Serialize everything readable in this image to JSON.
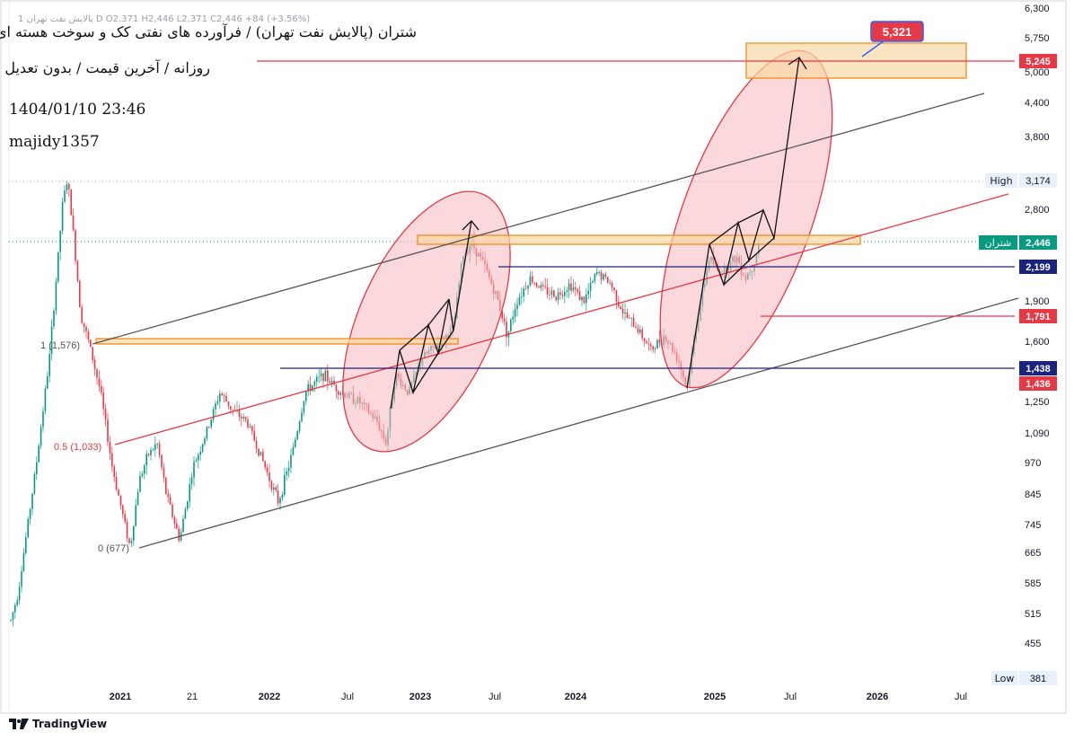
{
  "header": {
    "title": "شتران (پالایش نفت تهران) / فرآورده های نفتی کک و سوخت هسته ای",
    "subtitle": "روزانه / آخرین قیمت / بدون تعدیل",
    "datetime": "1404/01/10 23:46",
    "author": "majidy1357",
    "ohlc": "1 پالایش نفت تهران D  O2,371  H2,446  L2,371  C2,446  +84 (+3.56%)"
  },
  "footer": {
    "brand": "TradingView",
    "logo_icon": "tradingview-logo-icon"
  },
  "colors": {
    "candle_up": "#089981",
    "candle_down": "#f23645",
    "channel": "#555555",
    "midline": "#e53945",
    "zone_fill": "#f9d9a5",
    "zone_stroke": "#f08c1e",
    "ellipse_fill": "#f7b8be",
    "ellipse_stroke": "#e53945",
    "support_blue": "#1a237e"
  },
  "chart_data": {
    "type": "candlestick",
    "yscale": "log",
    "ylim": [
      381,
      6300
    ],
    "y_ticks": [
      "455",
      "515",
      "585",
      "665",
      "745",
      "845",
      "970",
      "1,090",
      "1,250",
      "1,600",
      "1,900",
      "2,800",
      "3,800",
      "4,400",
      "5,000",
      "5,750",
      "6,300"
    ],
    "x_ticks": [
      "2021",
      "21",
      "2022",
      "Jul",
      "2023",
      "Jul",
      "2024",
      "2025",
      "Jul",
      "2026",
      "Jul"
    ],
    "price_labels": [
      {
        "text": "5,321",
        "value": 5321,
        "color": "#e53945"
      },
      {
        "text": "5,245",
        "value": 5245,
        "color": "#e53945"
      },
      {
        "text": "3,174",
        "value": 3174,
        "color": "#e7f0fb",
        "prefix": "High"
      },
      {
        "text": "2,446",
        "value": 2446,
        "color": "#089981",
        "prefix": "شتران"
      },
      {
        "text": "2,199",
        "value": 2199,
        "color": "#1a237e"
      },
      {
        "text": "1,791",
        "value": 1791,
        "color": "#e53945"
      },
      {
        "text": "1,438",
        "value": 1438,
        "color": "#1a237e"
      },
      {
        "text": "1,436",
        "value": 1436,
        "color": "#e53945"
      },
      {
        "text": "381",
        "value": 381,
        "color": "#e7f0fb",
        "prefix": "Low"
      }
    ],
    "fib_labels": [
      {
        "text": "1 (1,576)",
        "value": 1576
      },
      {
        "text": "0.5 (1,033)",
        "value": 1033
      },
      {
        "text": "0 (677)",
        "value": 677
      }
    ],
    "price_path": [
      [
        0,
        420
      ],
      [
        20,
        560
      ],
      [
        40,
        950
      ],
      [
        55,
        1500
      ],
      [
        70,
        2900
      ],
      [
        75,
        3174
      ],
      [
        80,
        2700
      ],
      [
        90,
        1800
      ],
      [
        100,
        1576
      ],
      [
        112,
        1300
      ],
      [
        125,
        950
      ],
      [
        138,
        760
      ],
      [
        145,
        677
      ],
      [
        155,
        900
      ],
      [
        165,
        1000
      ],
      [
        175,
        1050
      ],
      [
        185,
        850
      ],
      [
        200,
        700
      ],
      [
        215,
        950
      ],
      [
        230,
        1100
      ],
      [
        245,
        1300
      ],
      [
        260,
        1200
      ],
      [
        275,
        1150
      ],
      [
        290,
        1000
      ],
      [
        310,
        820
      ],
      [
        325,
        1000
      ],
      [
        340,
        1300
      ],
      [
        360,
        1400
      ],
      [
        380,
        1300
      ],
      [
        400,
        1250
      ],
      [
        420,
        1150
      ],
      [
        430,
        1050
      ],
      [
        440,
        1400
      ],
      [
        455,
        1300
      ],
      [
        470,
        1500
      ],
      [
        490,
        1600
      ],
      [
        505,
        1700
      ],
      [
        515,
        2300
      ],
      [
        525,
        2446
      ],
      [
        540,
        2200
      ],
      [
        555,
        1900
      ],
      [
        565,
        1650
      ],
      [
        575,
        1900
      ],
      [
        590,
        2100
      ],
      [
        605,
        2000
      ],
      [
        620,
        1950
      ],
      [
        635,
        2050
      ],
      [
        650,
        1900
      ],
      [
        665,
        2150
      ],
      [
        680,
        2050
      ],
      [
        695,
        1800
      ],
      [
        710,
        1700
      ],
      [
        725,
        1550
      ],
      [
        740,
        1650
      ],
      [
        755,
        1500
      ],
      [
        765,
        1320
      ],
      [
        775,
        1700
      ],
      [
        790,
        2300
      ],
      [
        800,
        2150
      ],
      [
        810,
        2200
      ],
      [
        820,
        2300
      ],
      [
        830,
        2100
      ],
      [
        840,
        2250
      ],
      [
        845,
        2446
      ]
    ],
    "annotations": {
      "target": "5,321",
      "zones": [
        "5,245 resistance box",
        "2,446 resistance box",
        "1,576 support box"
      ],
      "channel": "ascending channel with midline",
      "ellipses": 2
    }
  }
}
